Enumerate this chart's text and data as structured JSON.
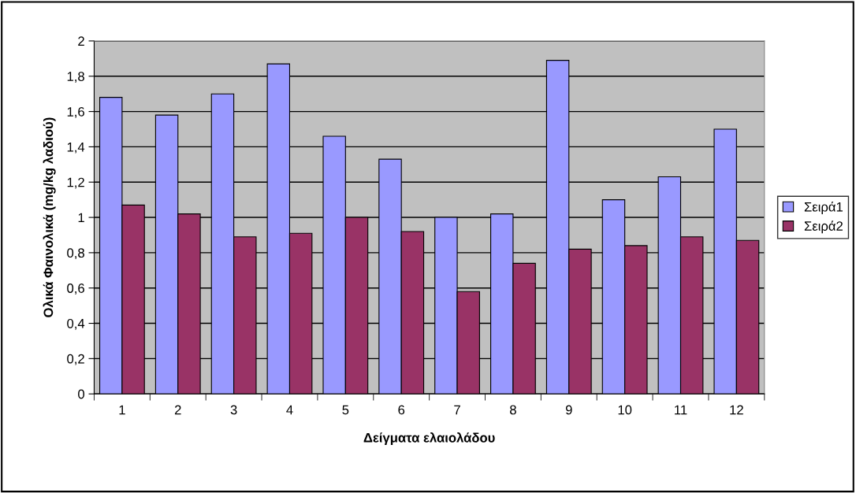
{
  "chart_data": {
    "type": "bar",
    "xlabel": "Δείγματα ελαιολάδου",
    "ylabel": "Ολικά Φαινολικά (mg/kg λαδιού)",
    "categories": [
      "1",
      "2",
      "3",
      "4",
      "5",
      "6",
      "7",
      "8",
      "9",
      "10",
      "11",
      "12"
    ],
    "series": [
      {
        "name": "Σειρά1",
        "color": "#9999ff",
        "values": [
          1.68,
          1.58,
          1.7,
          1.87,
          1.46,
          1.33,
          1.0,
          1.02,
          1.89,
          1.1,
          1.23,
          1.5
        ]
      },
      {
        "name": "Σειρά2",
        "color": "#993366",
        "values": [
          1.07,
          1.02,
          0.89,
          0.91,
          1.0,
          0.92,
          0.58,
          0.74,
          0.82,
          0.84,
          0.89,
          0.87
        ]
      }
    ],
    "ylim": [
      0,
      2
    ],
    "yticks": [
      0,
      {
        "value": 0.2,
        "label": "0,2"
      },
      {
        "value": 0.4,
        "label": "0,4"
      },
      {
        "value": 0.6,
        "label": "0,6"
      },
      {
        "value": 0.8,
        "label": "0,8"
      },
      1,
      {
        "value": 1.2,
        "label": "1,2"
      },
      {
        "value": 1.4,
        "label": "1,4"
      },
      {
        "value": 1.6,
        "label": "1,6"
      },
      {
        "value": 1.8,
        "label": "1,8"
      },
      2
    ],
    "grid": "y",
    "legend": "right"
  }
}
